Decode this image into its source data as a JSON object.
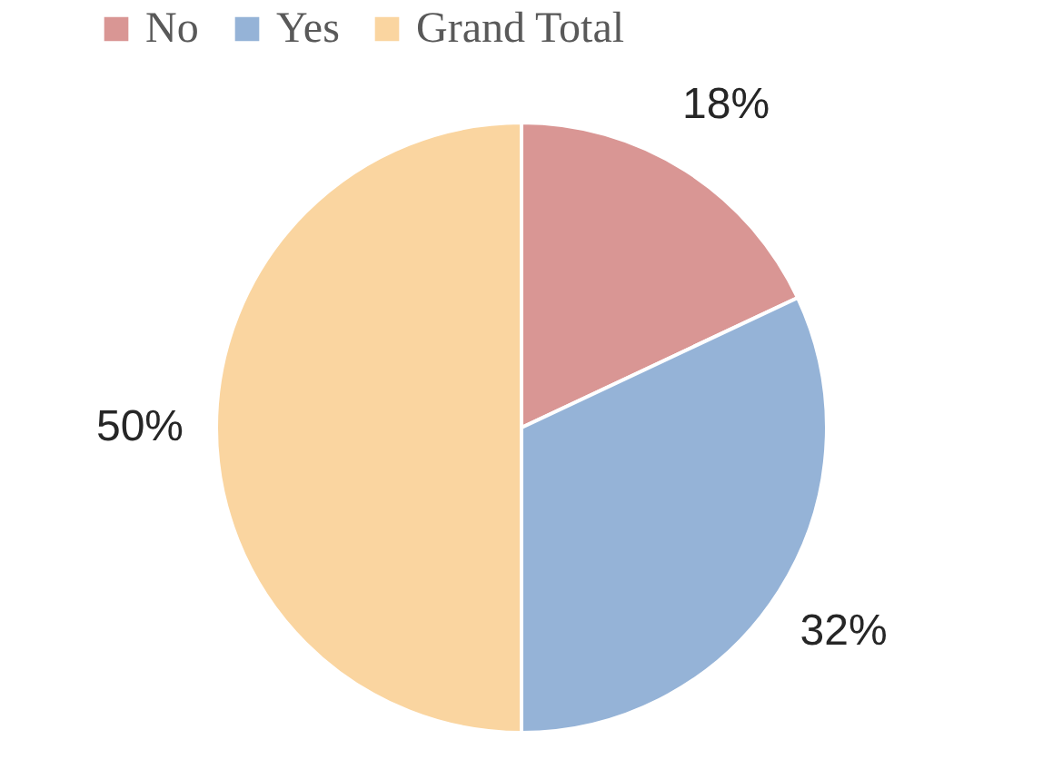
{
  "chart_data": {
    "type": "pie",
    "categories": [
      "No",
      "Yes",
      "Grand Total"
    ],
    "values": [
      18,
      32,
      50
    ],
    "colors": [
      "#d99694",
      "#95b3d7",
      "#fad5a0"
    ],
    "value_labels": [
      "18%",
      "32%",
      "50%"
    ],
    "legend": "top"
  }
}
